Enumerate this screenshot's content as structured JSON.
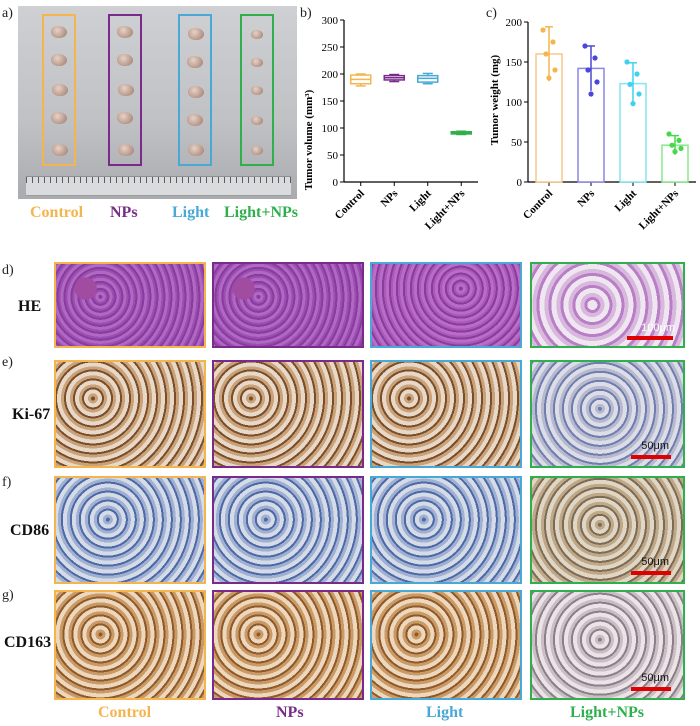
{
  "panel_labels": {
    "a": "a)",
    "b": "b)",
    "c": "c)",
    "d": "d)",
    "e": "e)",
    "f": "f)",
    "g": "g)"
  },
  "groups": [
    "Control",
    "NPs",
    "Light",
    "Light+NPs"
  ],
  "colors": {
    "control": "#f4b54f",
    "nps": "#7a2a8a",
    "light": "#49a9d6",
    "light_nps": "#2fb04d",
    "scalebar": "#e00000"
  },
  "rows": [
    {
      "key": "he",
      "label": "HE",
      "scale": "100μm"
    },
    {
      "key": "ki67",
      "label": "Ki-67",
      "scale": "50μm"
    },
    {
      "key": "cd86",
      "label": "CD86",
      "scale": "50μm"
    },
    {
      "key": "cd163",
      "label": "CD163",
      "scale": "50μm"
    }
  ],
  "chart_data": [
    {
      "type": "box",
      "panel": "b",
      "categories": [
        "Control",
        "NPs",
        "Light",
        "Light+NPs"
      ],
      "ylabel": "Tumor volume (mm³)",
      "yticks": [
        0,
        50,
        100,
        150,
        200,
        250,
        300
      ],
      "ylim": [
        0,
        300
      ],
      "boxes": [
        {
          "min": 178,
          "q1": 182,
          "median": 190,
          "q3": 198,
          "max": 200
        },
        {
          "min": 186,
          "q1": 189,
          "median": 193,
          "q3": 197,
          "max": 199
        },
        {
          "min": 182,
          "q1": 185,
          "median": 192,
          "q3": 197,
          "max": 201
        },
        {
          "min": 88,
          "q1": 89,
          "median": 91,
          "q3": 93,
          "max": 94
        }
      ]
    },
    {
      "type": "bar",
      "panel": "c",
      "categories": [
        "Control",
        "NPs",
        "Light",
        "Light+NPs"
      ],
      "ylabel": "Tumor weight (mg)",
      "yticks": [
        0,
        50,
        100,
        150,
        200
      ],
      "ylim": [
        0,
        200
      ],
      "values": [
        160,
        142,
        123,
        46
      ],
      "errors": [
        34,
        28,
        26,
        12
      ],
      "points": [
        [
          190,
          175,
          160,
          140,
          130
        ],
        [
          170,
          155,
          140,
          125,
          110
        ],
        [
          150,
          135,
          122,
          110,
          98
        ],
        [
          60,
          52,
          46,
          42,
          38
        ]
      ]
    }
  ]
}
